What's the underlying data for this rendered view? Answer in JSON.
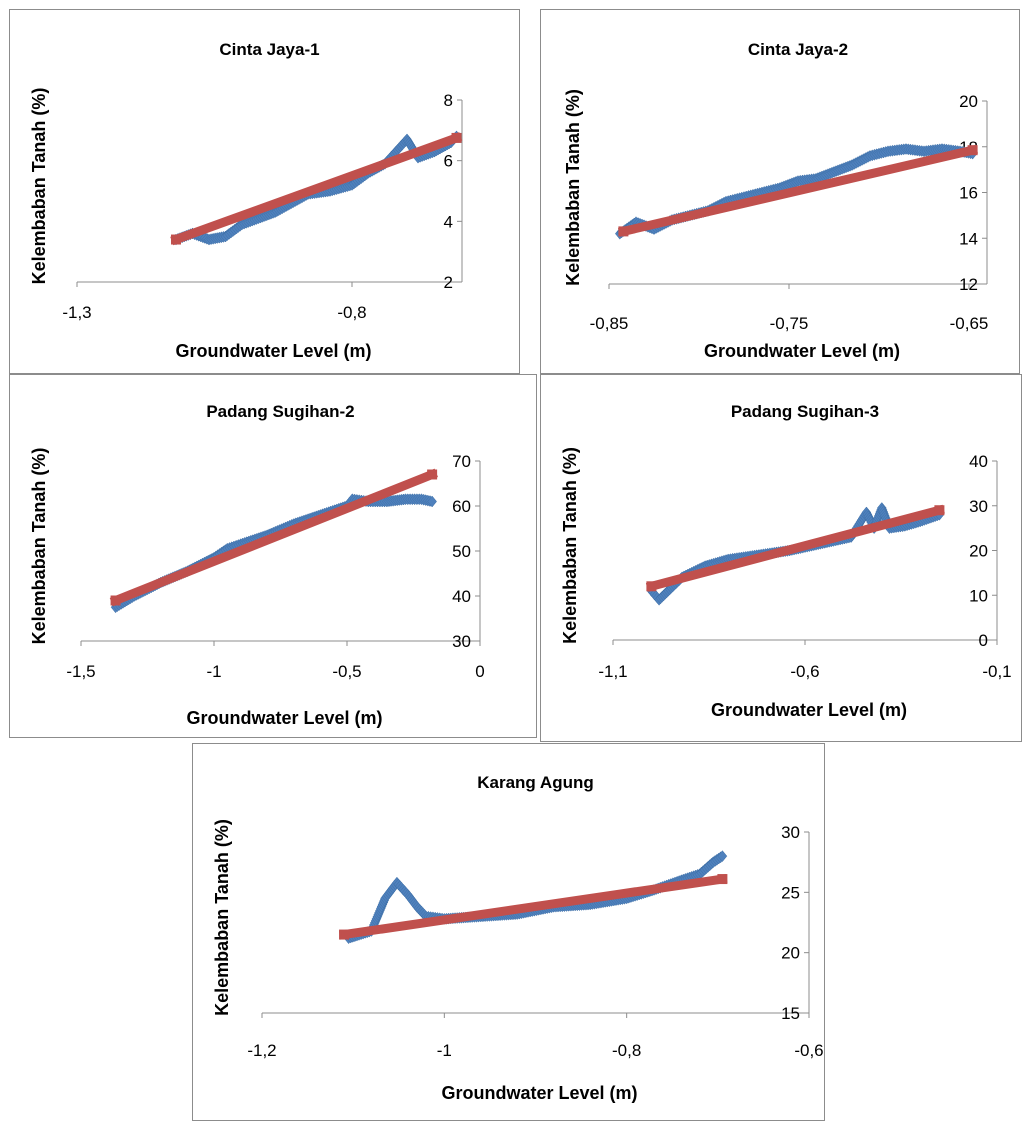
{
  "colors": {
    "observed": "#4f81bd",
    "observed_dark": "#3d6ea5",
    "trend": "#c0504d",
    "axis": "#8c8c8c"
  },
  "chart_data": [
    {
      "type": "scatter",
      "title": "Cinta Jaya-1",
      "xlabel": "Groundwater Level (m)",
      "ylabel": "Kelembaban Tanah (%)",
      "xlim": [
        -1.3,
        -0.6
      ],
      "ylim": [
        2,
        8
      ],
      "x_ticks": [
        -1.3,
        -0.8
      ],
      "x_tick_labels": [
        "-1,3",
        "-0,8"
      ],
      "y_ticks": [
        2,
        4,
        6,
        8
      ],
      "y_tick_labels": [
        "2",
        "4",
        "6",
        "8"
      ],
      "series": [
        {
          "points": [
            [
              -1.12,
              3.4
            ],
            [
              -1.09,
              3.6
            ],
            [
              -1.06,
              3.4
            ],
            [
              -1.03,
              3.5
            ],
            [
              -1.0,
              3.9
            ],
            [
              -0.97,
              4.1
            ],
            [
              -0.94,
              4.3
            ],
            [
              -0.91,
              4.6
            ],
            [
              -0.88,
              4.9
            ],
            [
              -0.84,
              5.0
            ],
            [
              -0.8,
              5.2
            ],
            [
              -0.77,
              5.6
            ],
            [
              -0.74,
              5.9
            ],
            [
              -0.72,
              6.3
            ],
            [
              -0.7,
              6.7
            ],
            [
              -0.68,
              6.1
            ],
            [
              -0.65,
              6.3
            ],
            [
              -0.62,
              6.6
            ],
            [
              -0.61,
              6.8
            ]
          ]
        },
        {
          "points": [
            [
              -1.12,
              3.4
            ],
            [
              -0.61,
              6.75
            ]
          ]
        }
      ]
    },
    {
      "type": "scatter",
      "title": "Cinta Jaya-2",
      "xlabel": "Groundwater Level (m)",
      "ylabel": "Kelembaban Tanah (%)",
      "xlim": [
        -0.85,
        -0.64
      ],
      "ylim": [
        12,
        20
      ],
      "x_ticks": [
        -0.85,
        -0.75,
        -0.65
      ],
      "x_tick_labels": [
        "-0,85",
        "-0,75",
        "-0,65"
      ],
      "y_ticks": [
        12,
        14,
        16,
        18,
        20
      ],
      "y_tick_labels": [
        "12",
        "14",
        "16",
        "18",
        "20"
      ],
      "series": [
        {
          "points": [
            [
              -0.844,
              14.2
            ],
            [
              -0.835,
              14.7
            ],
            [
              -0.825,
              14.4
            ],
            [
              -0.815,
              14.8
            ],
            [
              -0.805,
              15.0
            ],
            [
              -0.795,
              15.2
            ],
            [
              -0.785,
              15.6
            ],
            [
              -0.775,
              15.8
            ],
            [
              -0.765,
              16.0
            ],
            [
              -0.755,
              16.2
            ],
            [
              -0.745,
              16.5
            ],
            [
              -0.735,
              16.6
            ],
            [
              -0.725,
              16.9
            ],
            [
              -0.715,
              17.2
            ],
            [
              -0.705,
              17.6
            ],
            [
              -0.695,
              17.8
            ],
            [
              -0.685,
              17.9
            ],
            [
              -0.675,
              17.8
            ],
            [
              -0.665,
              17.9
            ],
            [
              -0.655,
              17.8
            ],
            [
              -0.648,
              17.7
            ]
          ]
        },
        {
          "points": [
            [
              -0.842,
              14.3
            ],
            [
              -0.648,
              17.85
            ]
          ]
        }
      ]
    },
    {
      "type": "scatter",
      "title": "Padang Sugihan-2",
      "xlabel": "Groundwater Level (m)",
      "ylabel": "Kelembaban Tanah (%)",
      "xlim": [
        -1.5,
        0
      ],
      "ylim": [
        30,
        70
      ],
      "x_ticks": [
        -1.5,
        -1,
        -0.5,
        0
      ],
      "x_tick_labels": [
        "-1,5",
        "-1",
        "-0,5",
        "0"
      ],
      "y_ticks": [
        30,
        40,
        50,
        60,
        70
      ],
      "y_tick_labels": [
        "30",
        "40",
        "50",
        "60",
        "70"
      ],
      "series": [
        {
          "points": [
            [
              -1.37,
              37.5
            ],
            [
              -1.3,
              40.0
            ],
            [
              -1.25,
              41.5
            ],
            [
              -1.2,
              43.0
            ],
            [
              -1.1,
              45.5
            ],
            [
              -1.0,
              48.5
            ],
            [
              -0.95,
              50.5
            ],
            [
              -0.9,
              51.5
            ],
            [
              -0.8,
              53.5
            ],
            [
              -0.7,
              56.0
            ],
            [
              -0.6,
              58.0
            ],
            [
              -0.5,
              60.0
            ],
            [
              -0.48,
              61.5
            ],
            [
              -0.42,
              61.0
            ],
            [
              -0.35,
              61.0
            ],
            [
              -0.28,
              61.5
            ],
            [
              -0.22,
              61.5
            ],
            [
              -0.18,
              61.0
            ]
          ]
        },
        {
          "points": [
            [
              -1.37,
              39.0
            ],
            [
              -0.18,
              67.0
            ]
          ]
        }
      ]
    },
    {
      "type": "scatter",
      "title": "Padang Sugihan-3",
      "xlabel": "Groundwater Level (m)",
      "ylabel": "Kelembaban Tanah (%)",
      "xlim": [
        -1.1,
        -0.1
      ],
      "ylim": [
        0,
        40
      ],
      "x_ticks": [
        -1.1,
        -0.6,
        -0.1
      ],
      "x_tick_labels": [
        "-1,1",
        "-0,6",
        "-0,1"
      ],
      "y_ticks": [
        0,
        10,
        20,
        30,
        40
      ],
      "y_tick_labels": [
        "0",
        "10",
        "20",
        "30",
        "40"
      ],
      "series": [
        {
          "points": [
            [
              -1.0,
              11.0
            ],
            [
              -0.98,
              9.0
            ],
            [
              -0.92,
              14.0
            ],
            [
              -0.86,
              16.5
            ],
            [
              -0.8,
              18.0
            ],
            [
              -0.72,
              19.0
            ],
            [
              -0.64,
              20.0
            ],
            [
              -0.56,
              21.5
            ],
            [
              -0.48,
              23.0
            ],
            [
              -0.44,
              28.5
            ],
            [
              -0.42,
              25.0
            ],
            [
              -0.4,
              29.5
            ],
            [
              -0.38,
              25.0
            ],
            [
              -0.34,
              25.5
            ],
            [
              -0.3,
              26.5
            ],
            [
              -0.25,
              28.0
            ]
          ]
        },
        {
          "points": [
            [
              -1.0,
              12.0
            ],
            [
              -0.25,
              29.0
            ]
          ]
        }
      ]
    },
    {
      "type": "scatter",
      "title": "Karang Agung",
      "xlabel": "Groundwater Level (m)",
      "ylabel": "Kelembaban Tanah (%)",
      "xlim": [
        -1.2,
        -0.6
      ],
      "ylim": [
        15,
        30
      ],
      "x_ticks": [
        -1.2,
        -1,
        -0.8,
        -0.6
      ],
      "x_tick_labels": [
        "-1,2",
        "-1",
        "-0,8",
        "-0,6"
      ],
      "y_ticks": [
        15,
        20,
        25,
        30
      ],
      "y_tick_labels": [
        "15",
        "20",
        "25",
        "30"
      ],
      "series": [
        {
          "points": [
            [
              -1.105,
              21.2
            ],
            [
              -1.08,
              21.8
            ],
            [
              -1.065,
              24.5
            ],
            [
              -1.052,
              25.8
            ],
            [
              -1.04,
              24.8
            ],
            [
              -1.03,
              23.8
            ],
            [
              -1.02,
              23.0
            ],
            [
              -1.0,
              22.8
            ],
            [
              -0.96,
              23.0
            ],
            [
              -0.92,
              23.2
            ],
            [
              -0.88,
              23.8
            ],
            [
              -0.84,
              24.0
            ],
            [
              -0.8,
              24.5
            ],
            [
              -0.77,
              25.2
            ],
            [
              -0.74,
              26.0
            ],
            [
              -0.72,
              26.5
            ],
            [
              -0.705,
              27.5
            ],
            [
              -0.695,
              28.0
            ]
          ]
        },
        {
          "points": [
            [
              -1.11,
              21.5
            ],
            [
              -0.695,
              26.1
            ]
          ]
        }
      ]
    }
  ]
}
